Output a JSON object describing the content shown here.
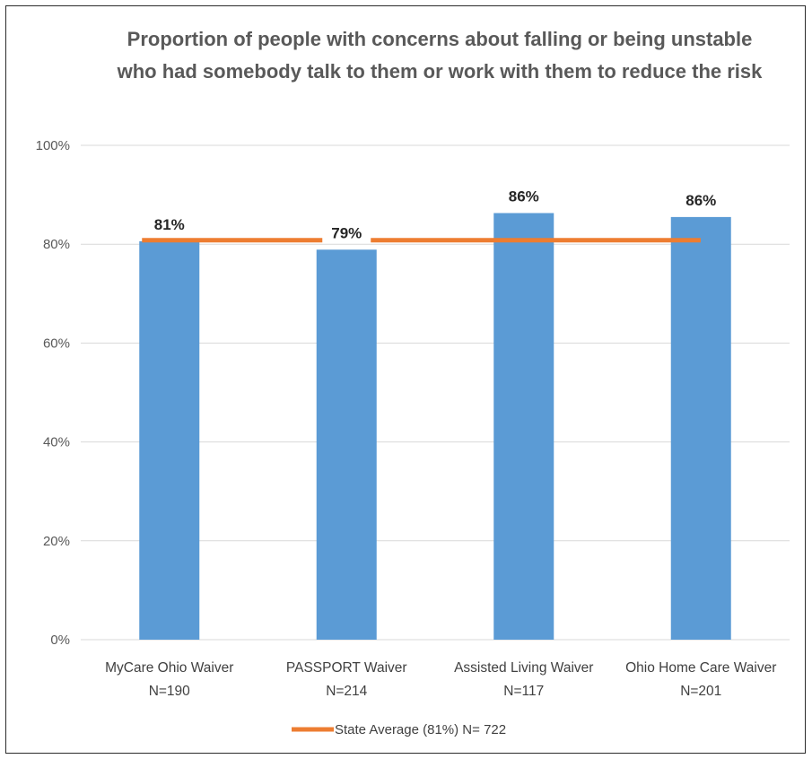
{
  "chart_data": {
    "type": "bar",
    "title": "Proportion of people with concerns about falling or being unstable who had somebody talk to them or work with them to reduce the risk",
    "categories": [
      [
        "MyCare Ohio Waiver",
        "N=190"
      ],
      [
        "PASSPORT Waiver",
        "N=214"
      ],
      [
        "Assisted Living Waiver",
        "N=117"
      ],
      [
        "Ohio Home Care Waiver",
        "N=201"
      ]
    ],
    "values": [
      80.6,
      78.9,
      86.3,
      85.5
    ],
    "data_labels": [
      "81%",
      "79%",
      "86%",
      "86%"
    ],
    "reference_line": {
      "name": "State Average (81%) N= 722",
      "value": 80.8
    },
    "ylim": [
      0,
      100
    ],
    "yticks": [
      0,
      20,
      40,
      60,
      80,
      100
    ],
    "ytick_labels": [
      "0%",
      "20%",
      "40%",
      "60%",
      "80%",
      "100%"
    ],
    "xlabel": "",
    "ylabel": "",
    "grid": true,
    "legend_position": "bottom",
    "colors": {
      "bar": "#5b9bd5",
      "line": "#ed7d31",
      "grid": "#d9d9d9"
    }
  }
}
